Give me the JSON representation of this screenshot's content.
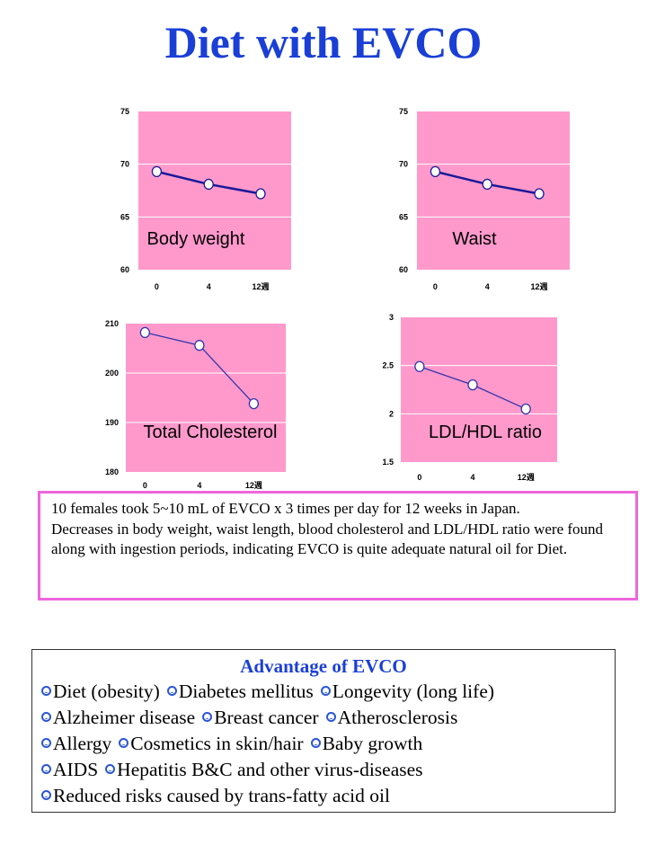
{
  "page": {
    "title": "Diet with EVCO"
  },
  "chart_data": [
    {
      "type": "line",
      "label": "Body weight",
      "x_ticks": [
        "0",
        "4",
        "12週"
      ],
      "y_ticks": [
        "60",
        "65",
        "70",
        "75"
      ],
      "ylim": [
        60,
        75
      ],
      "values": [
        69.3,
        68.1,
        67.2
      ],
      "grid": true,
      "line_color": "#1a1a99"
    },
    {
      "type": "line",
      "label": "Waist",
      "x_ticks": [
        "0",
        "4",
        "12週"
      ],
      "y_ticks": [
        "60",
        "65",
        "70",
        "75"
      ],
      "ylim": [
        60,
        75
      ],
      "values": [
        69.3,
        68.1,
        67.2
      ],
      "grid": true,
      "line_color": "#1a1a99"
    },
    {
      "type": "line",
      "label": "Total Cholesterol",
      "x_ticks": [
        "0",
        "4",
        "12週"
      ],
      "y_ticks": [
        "180",
        "190",
        "200",
        "210"
      ],
      "ylim": [
        180,
        210
      ],
      "values": [
        208.2,
        205.6,
        193.8
      ],
      "grid": true,
      "line_color": "#3333aa"
    },
    {
      "type": "line",
      "label": "LDL/HDL ratio",
      "x_ticks": [
        "0",
        "4",
        "12週"
      ],
      "y_ticks": [
        "1.5",
        "2",
        "2.5",
        "3"
      ],
      "ylim": [
        1.5,
        3
      ],
      "values": [
        2.49,
        2.3,
        2.05
      ],
      "grid": true,
      "line_color": "#3333aa"
    }
  ],
  "description": {
    "line1": "10 females took 5~10 mL of EVCO x 3 times per day for 12 weeks in Japan.",
    "line2": "Decreases in body weight, waist length, blood cholesterol and LDL/HDL ratio were found along with ingestion periods, indicating EVCO is quite adequate natural oil for Diet."
  },
  "advantages": {
    "title": "Advantage of EVCO",
    "rows": [
      [
        "Diet (obesity)",
        "Diabetes mellitus",
        "Longevity (long life)"
      ],
      [
        "Alzheimer disease",
        "Breast cancer",
        "Atherosclerosis"
      ],
      [
        "Allergy",
        "Cosmetics in skin/hair",
        "Baby growth"
      ],
      [
        "AIDS",
        "Hepatitis B&C and other virus-diseases"
      ],
      [
        "Reduced risks caused by trans-fatty acid oil"
      ]
    ]
  },
  "colors": {
    "title": "#1a3fd6",
    "plot_bg": "#ff99cc",
    "desc_border": "#ee66dd",
    "bullet": "#2a55d8"
  }
}
